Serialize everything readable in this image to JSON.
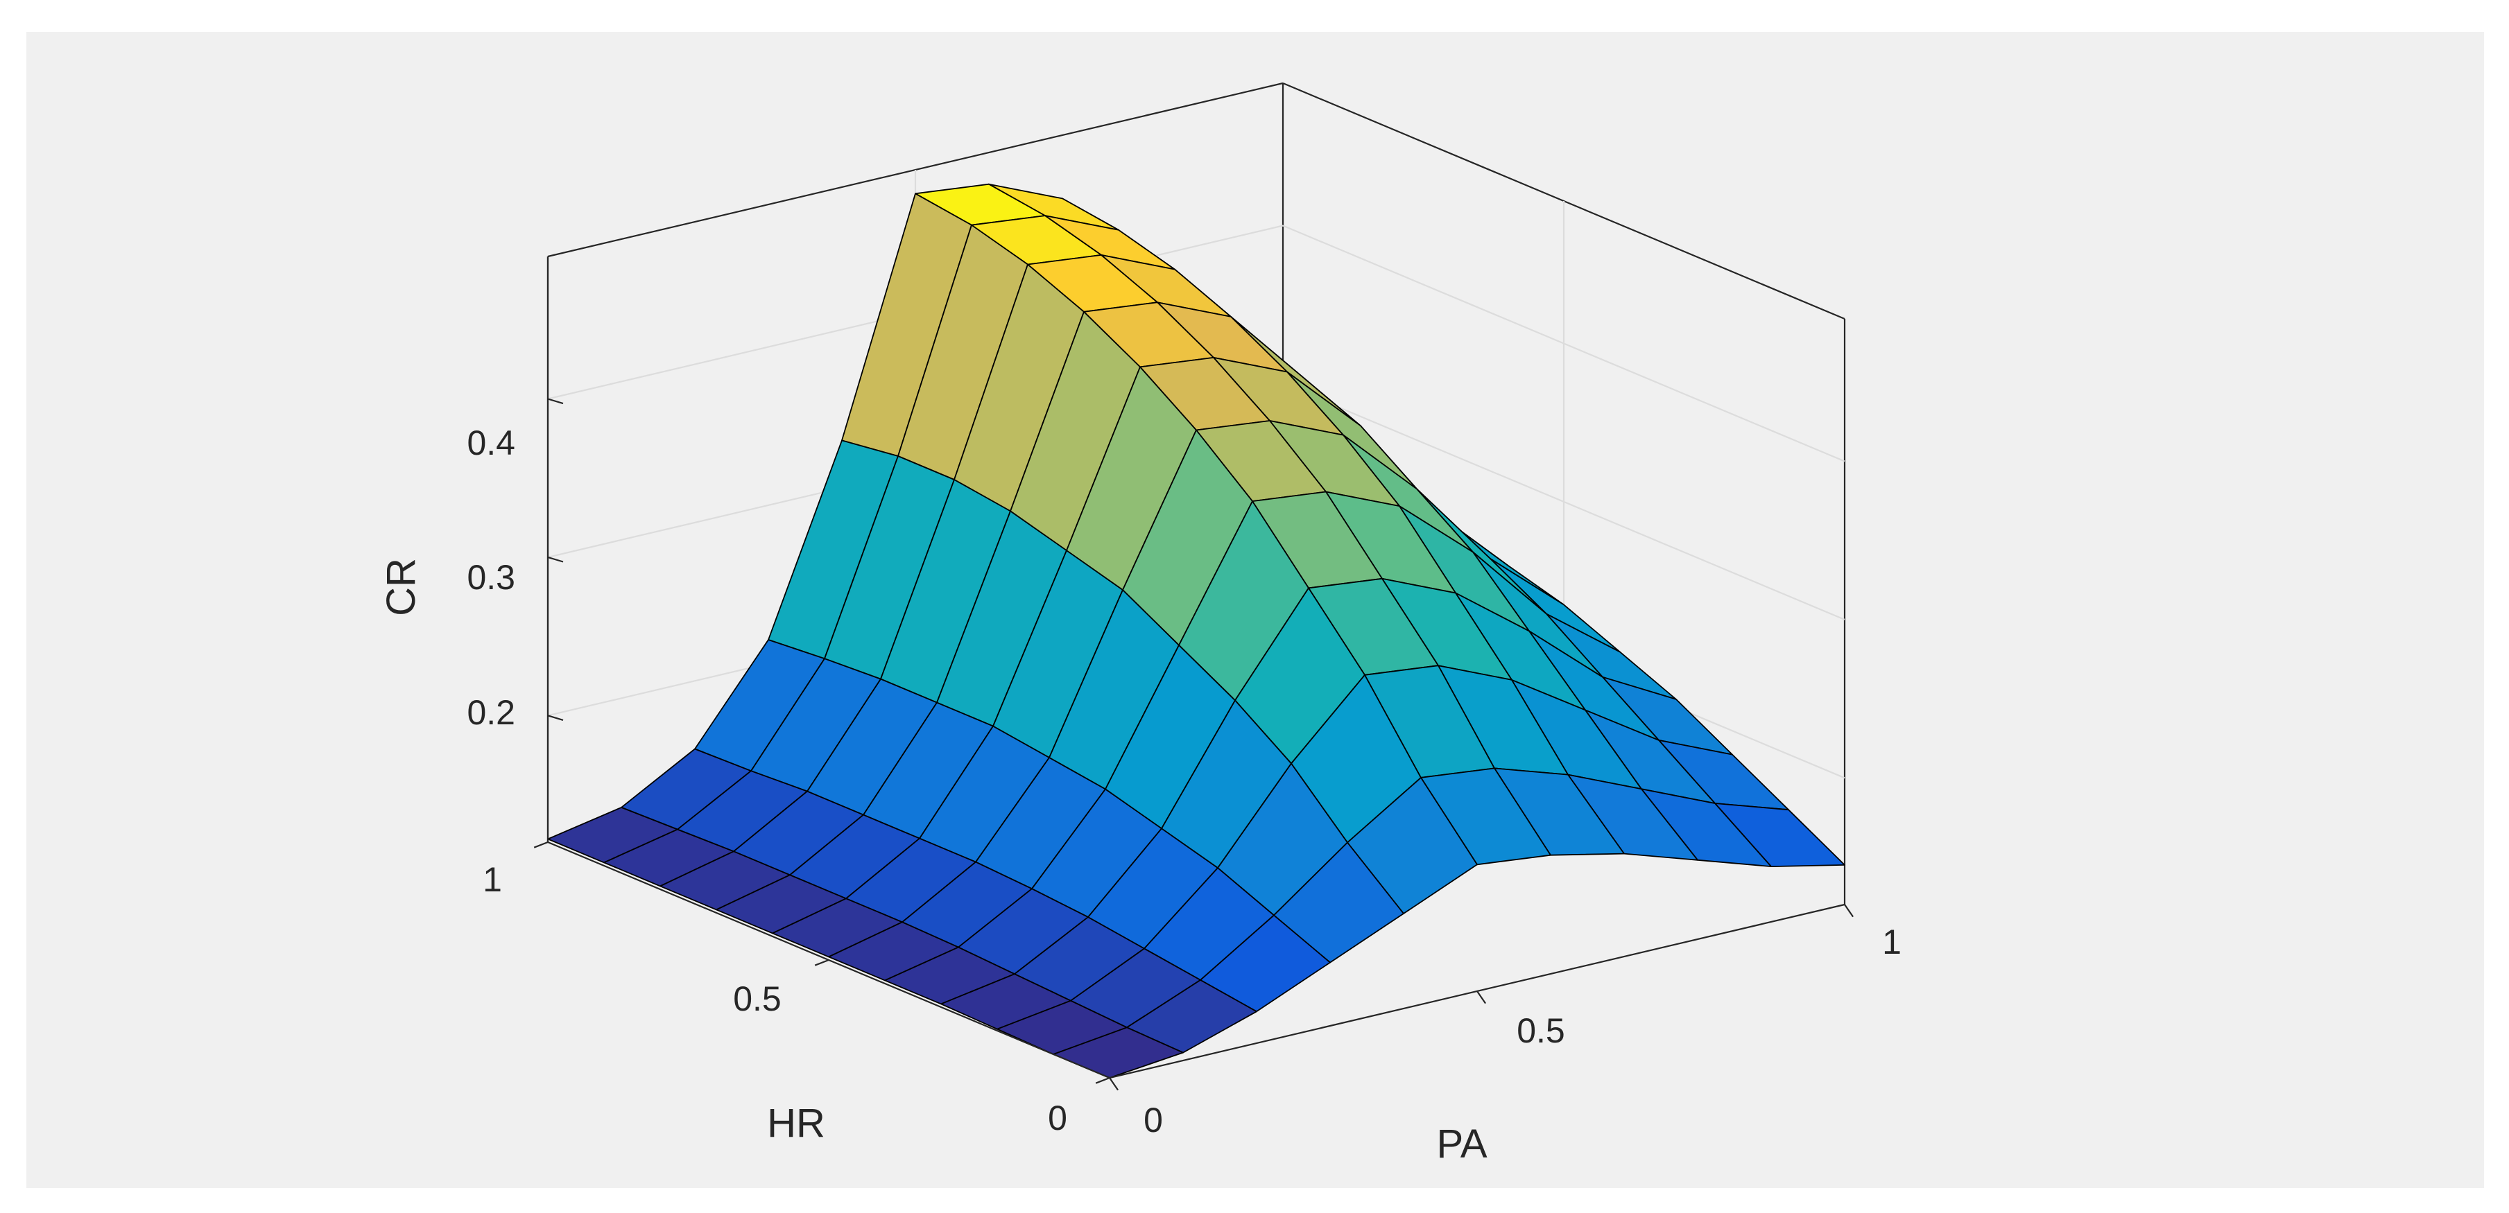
{
  "chart_data": {
    "type": "surface",
    "xlabel": "PA",
    "ylabel": "HR",
    "zlabel": "CR",
    "xlim": [
      0,
      1
    ],
    "ylim": [
      0,
      1
    ],
    "zlim": [
      0.12,
      0.49
    ],
    "x_ticks": [
      "0",
      "0.5",
      "1"
    ],
    "y_ticks": [
      "0",
      "0.5",
      "1"
    ],
    "z_ticks": [
      "0.2",
      "0.3",
      "0.4"
    ],
    "colormap": "parula",
    "grid": true,
    "background": "#f0f0f0",
    "x": [
      0,
      0.1,
      0.2,
      0.3,
      0.4,
      0.5,
      0.6,
      0.7,
      0.8,
      0.9,
      1
    ],
    "y": [
      0,
      0.1,
      0.2,
      0.3,
      0.4,
      0.5,
      0.6,
      0.7,
      0.8,
      0.9,
      1
    ],
    "z_rows_by_y": [
      [
        0.12,
        0.125,
        0.14,
        0.16,
        0.18,
        0.2,
        0.195,
        0.185,
        0.17,
        0.155,
        0.145
      ],
      [
        0.12,
        0.126,
        0.145,
        0.175,
        0.21,
        0.24,
        0.235,
        0.22,
        0.2,
        0.18,
        0.165
      ],
      [
        0.121,
        0.128,
        0.15,
        0.19,
        0.245,
        0.29,
        0.285,
        0.265,
        0.235,
        0.205,
        0.185
      ],
      [
        0.122,
        0.13,
        0.155,
        0.2,
        0.27,
        0.33,
        0.325,
        0.305,
        0.27,
        0.23,
        0.205
      ],
      [
        0.122,
        0.132,
        0.158,
        0.21,
        0.29,
        0.37,
        0.365,
        0.345,
        0.305,
        0.255,
        0.22
      ],
      [
        0.122,
        0.133,
        0.16,
        0.215,
        0.31,
        0.4,
        0.395,
        0.375,
        0.33,
        0.275,
        0.235
      ],
      [
        0.122,
        0.133,
        0.16,
        0.22,
        0.32,
        0.425,
        0.42,
        0.4,
        0.355,
        0.29,
        0.245
      ],
      [
        0.122,
        0.133,
        0.16,
        0.22,
        0.33,
        0.445,
        0.44,
        0.42,
        0.37,
        0.3,
        0.25
      ],
      [
        0.122,
        0.133,
        0.16,
        0.22,
        0.335,
        0.46,
        0.455,
        0.435,
        0.38,
        0.305,
        0.255
      ],
      [
        0.122,
        0.132,
        0.158,
        0.218,
        0.335,
        0.47,
        0.465,
        0.445,
        0.385,
        0.31,
        0.255
      ],
      [
        0.122,
        0.131,
        0.157,
        0.215,
        0.33,
        0.475,
        0.47,
        0.45,
        0.39,
        0.31,
        0.255
      ]
    ]
  }
}
